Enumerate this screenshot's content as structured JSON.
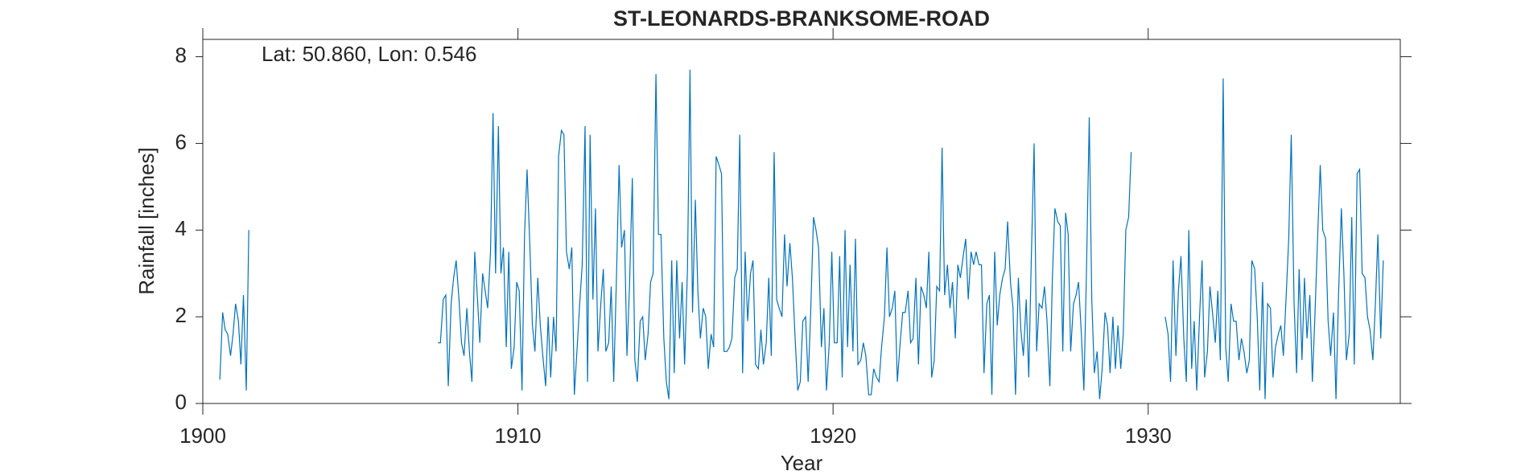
{
  "chart_data": {
    "type": "line",
    "title": "ST-LEONARDS-BRANKSOME-ROAD",
    "annotation": "Lat: 50.860, Lon: 0.546",
    "x_label": "Year",
    "y_label": "Rainfall [inches]",
    "xlim": [
      1900,
      1938
    ],
    "ylim": [
      0,
      8.4
    ],
    "xticks": [
      1900,
      1910,
      1920,
      1930
    ],
    "yticks": [
      0,
      2,
      4,
      6,
      8
    ],
    "grid": false,
    "x": [
      1900.54,
      1900.63,
      1900.71,
      1900.79,
      1900.88,
      1900.96,
      1901.04,
      1901.13,
      1901.21,
      1901.29,
      1901.38,
      1901.46,
      1904,
      1907.46,
      1907.54,
      1907.63,
      1907.71,
      1907.79,
      1907.88,
      1907.96,
      1908.04,
      1908.13,
      1908.21,
      1908.29,
      1908.38,
      1908.46,
      1908.54,
      1908.63,
      1908.71,
      1908.79,
      1908.88,
      1908.96,
      1909.04,
      1909.13,
      1909.21,
      1909.29,
      1909.38,
      1909.46,
      1909.54,
      1909.63,
      1909.71,
      1909.79,
      1909.88,
      1909.96,
      1910.04,
      1910.13,
      1910.21,
      1910.29,
      1910.38,
      1910.46,
      1910.54,
      1910.63,
      1910.71,
      1910.79,
      1910.88,
      1910.96,
      1911.04,
      1911.13,
      1911.21,
      1911.29,
      1911.38,
      1911.46,
      1911.54,
      1911.63,
      1911.71,
      1911.79,
      1911.88,
      1911.96,
      1912.04,
      1912.13,
      1912.21,
      1912.29,
      1912.38,
      1912.46,
      1912.54,
      1912.63,
      1912.71,
      1912.79,
      1912.88,
      1912.96,
      1913.04,
      1913.13,
      1913.21,
      1913.29,
      1913.38,
      1913.46,
      1913.54,
      1913.63,
      1913.71,
      1913.79,
      1913.88,
      1913.96,
      1914.04,
      1914.13,
      1914.21,
      1914.29,
      1914.38,
      1914.46,
      1914.54,
      1914.63,
      1914.71,
      1914.79,
      1914.88,
      1914.96,
      1915.04,
      1915.13,
      1915.21,
      1915.29,
      1915.38,
      1915.46,
      1915.54,
      1915.63,
      1915.71,
      1915.79,
      1915.88,
      1915.96,
      1916.04,
      1916.13,
      1916.21,
      1916.29,
      1916.38,
      1916.46,
      1916.54,
      1916.63,
      1916.71,
      1916.79,
      1916.88,
      1916.96,
      1917.04,
      1917.13,
      1917.21,
      1917.29,
      1917.38,
      1917.46,
      1917.54,
      1917.63,
      1917.71,
      1917.79,
      1917.88,
      1917.96,
      1918.04,
      1918.13,
      1918.21,
      1918.29,
      1918.38,
      1918.46,
      1918.54,
      1918.63,
      1918.71,
      1918.79,
      1918.88,
      1918.96,
      1919.04,
      1919.13,
      1919.21,
      1919.29,
      1919.38,
      1919.46,
      1919.54,
      1919.63,
      1919.71,
      1919.79,
      1919.88,
      1919.96,
      1920.04,
      1920.13,
      1920.21,
      1920.29,
      1920.38,
      1920.46,
      1920.54,
      1920.63,
      1920.71,
      1920.79,
      1920.88,
      1920.96,
      1921.04,
      1921.13,
      1921.21,
      1921.29,
      1921.38,
      1921.46,
      1921.54,
      1921.63,
      1921.71,
      1921.79,
      1921.88,
      1921.96,
      1922.04,
      1922.13,
      1922.21,
      1922.29,
      1922.38,
      1922.46,
      1922.54,
      1922.63,
      1922.71,
      1922.79,
      1922.88,
      1922.96,
      1923.04,
      1923.13,
      1923.21,
      1923.29,
      1923.38,
      1923.46,
      1923.54,
      1923.63,
      1923.71,
      1923.79,
      1923.88,
      1923.96,
      1924.04,
      1924.13,
      1924.21,
      1924.29,
      1924.38,
      1924.46,
      1924.54,
      1924.63,
      1924.71,
      1924.79,
      1924.88,
      1924.96,
      1925.04,
      1925.13,
      1925.21,
      1925.29,
      1925.38,
      1925.46,
      1925.54,
      1925.63,
      1925.71,
      1925.79,
      1925.88,
      1925.96,
      1926.04,
      1926.13,
      1926.21,
      1926.29,
      1926.38,
      1926.46,
      1926.54,
      1926.63,
      1926.71,
      1926.79,
      1926.88,
      1926.96,
      1927.04,
      1927.13,
      1927.21,
      1927.29,
      1927.38,
      1927.46,
      1927.54,
      1927.63,
      1927.71,
      1927.79,
      1927.88,
      1927.96,
      1928.04,
      1928.13,
      1928.21,
      1928.29,
      1928.38,
      1928.46,
      1928.54,
      1928.63,
      1928.71,
      1928.79,
      1928.88,
      1928.96,
      1929.04,
      1929.13,
      1929.21,
      1929.29,
      1929.38,
      1929.46,
      1930,
      1930.54,
      1930.63,
      1930.71,
      1930.79,
      1930.88,
      1930.96,
      1931.04,
      1931.13,
      1931.21,
      1931.29,
      1931.38,
      1931.46,
      1931.54,
      1931.63,
      1931.71,
      1931.79,
      1931.88,
      1931.96,
      1932.04,
      1932.13,
      1932.21,
      1932.29,
      1932.38,
      1932.46,
      1932.54,
      1932.63,
      1932.71,
      1932.79,
      1932.88,
      1932.96,
      1933.04,
      1933.13,
      1933.21,
      1933.29,
      1933.38,
      1933.46,
      1933.54,
      1933.63,
      1933.71,
      1933.79,
      1933.88,
      1933.96,
      1934.04,
      1934.13,
      1934.21,
      1934.29,
      1934.38,
      1934.46,
      1934.54,
      1934.63,
      1934.71,
      1934.79,
      1934.88,
      1934.96,
      1935.04,
      1935.13,
      1935.21,
      1935.29,
      1935.38,
      1935.46,
      1935.54,
      1935.63,
      1935.71,
      1935.79,
      1935.88,
      1935.96,
      1936.04,
      1936.13,
      1936.21,
      1936.29,
      1936.38,
      1936.46,
      1936.54,
      1936.63,
      1936.71,
      1936.79,
      1936.88,
      1936.96,
      1937.04,
      1937.13,
      1937.21,
      1937.29,
      1937.38,
      1937.46
    ],
    "series": [
      {
        "color": "#0072BD",
        "values": [
          0.55,
          2.1,
          1.7,
          1.6,
          1.1,
          1.6,
          2.3,
          1.9,
          0.9,
          2.5,
          0.3,
          4.0,
          null,
          1.4,
          1.4,
          2.4,
          2.5,
          0.4,
          2.3,
          2.9,
          3.3,
          2.4,
          1.4,
          1.1,
          2.2,
          1.2,
          0.5,
          3.5,
          2.5,
          1.4,
          3.0,
          2.6,
          2.2,
          3.5,
          6.7,
          3.0,
          6.4,
          3.0,
          3.6,
          1.3,
          3.5,
          0.8,
          1.3,
          2.8,
          2.6,
          0.3,
          3.9,
          5.4,
          3.6,
          1.8,
          1.2,
          2.9,
          1.8,
          1.1,
          0.4,
          2.0,
          0.6,
          2.0,
          1.2,
          5.7,
          6.3,
          6.2,
          3.5,
          3.1,
          3.6,
          0.2,
          1.3,
          2.3,
          3.2,
          6.4,
          0.5,
          6.2,
          2.4,
          4.5,
          1.2,
          2.3,
          3.1,
          1.2,
          1.4,
          2.7,
          0.5,
          3.0,
          5.5,
          3.6,
          4.0,
          1.1,
          2.7,
          5.2,
          1.0,
          0.5,
          1.9,
          2.0,
          1.0,
          1.6,
          2.8,
          3.0,
          7.6,
          3.9,
          3.9,
          1.5,
          0.5,
          0.1,
          3.3,
          0.7,
          3.3,
          1.5,
          2.8,
          0.9,
          3.1,
          7.7,
          2.1,
          4.7,
          2.6,
          1.5,
          2.2,
          2.0,
          0.8,
          1.6,
          1.3,
          5.7,
          5.5,
          5.3,
          1.2,
          1.2,
          1.3,
          1.5,
          2.9,
          3.1,
          6.2,
          0.7,
          3.5,
          1.9,
          3.0,
          3.3,
          0.9,
          0.8,
          1.7,
          0.9,
          1.4,
          2.9,
          1.1,
          5.8,
          2.4,
          2.2,
          2.0,
          3.9,
          2.7,
          3.7,
          2.9,
          1.6,
          0.3,
          0.5,
          1.9,
          2.0,
          0.5,
          2.1,
          4.3,
          4.0,
          3.6,
          1.3,
          2.2,
          0.3,
          1.4,
          3.5,
          1.4,
          1.4,
          3.4,
          0.6,
          4.0,
          1.3,
          3.2,
          1.2,
          3.8,
          0.9,
          1.0,
          1.4,
          1.1,
          0.2,
          0.2,
          0.8,
          0.6,
          0.5,
          1.3,
          2.0,
          3.6,
          2.0,
          2.2,
          2.6,
          0.5,
          1.4,
          2.1,
          2.1,
          2.6,
          1.4,
          1.5,
          2.9,
          0.9,
          2.7,
          2.5,
          2.2,
          3.5,
          0.6,
          1.0,
          2.7,
          2.6,
          5.9,
          2.5,
          3.2,
          2.2,
          2.8,
          1.5,
          3.2,
          2.9,
          3.4,
          3.8,
          2.4,
          3.5,
          3.2,
          3.5,
          3.2,
          3.2,
          0.7,
          2.3,
          2.5,
          0.2,
          3.5,
          1.8,
          2.5,
          2.9,
          3.1,
          4.2,
          2.8,
          2.2,
          0.2,
          2.9,
          1.7,
          1.1,
          2.4,
          0.6,
          3.3,
          6.0,
          1.2,
          2.3,
          2.2,
          2.7,
          1.9,
          0.4,
          2.9,
          4.5,
          4.2,
          4.1,
          1.2,
          4.4,
          3.9,
          1.2,
          2.3,
          2.5,
          2.8,
          1.6,
          0.3,
          3.0,
          6.6,
          2.4,
          0.7,
          1.2,
          0.1,
          0.8,
          2.1,
          1.8,
          0.7,
          2.0,
          0.8,
          1.8,
          0.8,
          1.6,
          4.0,
          4.3,
          5.8,
          null,
          2.0,
          1.6,
          0.5,
          3.3,
          1.1,
          2.6,
          3.4,
          1.5,
          0.5,
          4.0,
          0.8,
          1.9,
          0.3,
          2.0,
          3.3,
          0.6,
          1.2,
          2.7,
          2.1,
          1.4,
          2.6,
          1.0,
          7.5,
          1.3,
          0.5,
          2.3,
          1.9,
          1.9,
          1.0,
          1.5,
          1.2,
          0.7,
          1.0,
          3.3,
          3.1,
          2.0,
          0.3,
          2.8,
          0.1,
          2.3,
          2.2,
          0.6,
          1.3,
          1.6,
          1.8,
          1.1,
          2.5,
          3.8,
          6.2,
          2.3,
          0.7,
          3.1,
          1.0,
          2.9,
          1.5,
          2.5,
          0.5,
          2.0,
          3.9,
          5.5,
          4.0,
          3.8,
          1.9,
          1.1,
          2.1,
          0.1,
          2.5,
          4.5,
          3.0,
          1.0,
          1.6,
          4.3,
          0.9,
          5.3,
          5.4,
          3.0,
          2.9,
          2.0,
          1.7,
          1.0,
          2.3,
          3.9,
          1.5,
          3.3
        ]
      }
    ]
  }
}
